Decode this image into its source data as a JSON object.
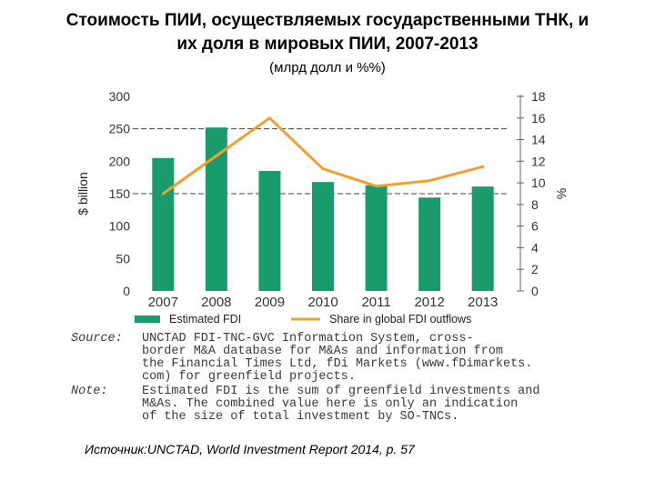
{
  "title_line1": "Стоимость ПИИ, осуществляемых государственными ТНК, и",
  "title_line2": "их доля в мировых ПИИ, 2007-2013",
  "subtitle": "(млрд долл и %%)",
  "chart_data": {
    "type": "bar",
    "categories": [
      "2007",
      "2008",
      "2009",
      "2010",
      "2011",
      "2012",
      "2013"
    ],
    "series": [
      {
        "name": "Estimated FDI",
        "type": "bar",
        "axis": "left",
        "color": "#1a9b6c",
        "values": [
          205,
          252,
          185,
          168,
          163,
          144,
          161
        ]
      },
      {
        "name": "Share in global FDI outflows",
        "type": "line",
        "axis": "right",
        "color": "#f0a030",
        "values": [
          9.0,
          12.5,
          16.0,
          11.3,
          9.7,
          10.2,
          11.5
        ]
      }
    ],
    "ylabel": "$ billion",
    "y2label": "%",
    "ylim": [
      0,
      300
    ],
    "y2lim": [
      0,
      18
    ],
    "yticks": [
      "0",
      "50",
      "100",
      "150",
      "200",
      "250",
      "300"
    ],
    "y2ticks": [
      "0",
      "2",
      "4",
      "6",
      "8",
      "10",
      "12",
      "14",
      "16",
      "18"
    ],
    "dashed_gridlines": [
      150,
      250
    ],
    "legend_placement": "bottom"
  },
  "source_label": "Source:",
  "source_lines": [
    "UNCTAD FDI-TNC-GVC Information System, cross-",
    "border M&A database for M&As and information from",
    "the Financial Times Ltd, fDi Markets (www.fDimarkets.",
    "com) for greenfield projects."
  ],
  "note_label": "Note:",
  "note_lines": [
    "Estimated FDI is the sum of greenfield investments and",
    "M&As. The combined value here is only an indication",
    "of the size of total investment by SO-TNCs."
  ],
  "footer": "Источник:UNCTAD, World Investment Report 2014, p. 57"
}
